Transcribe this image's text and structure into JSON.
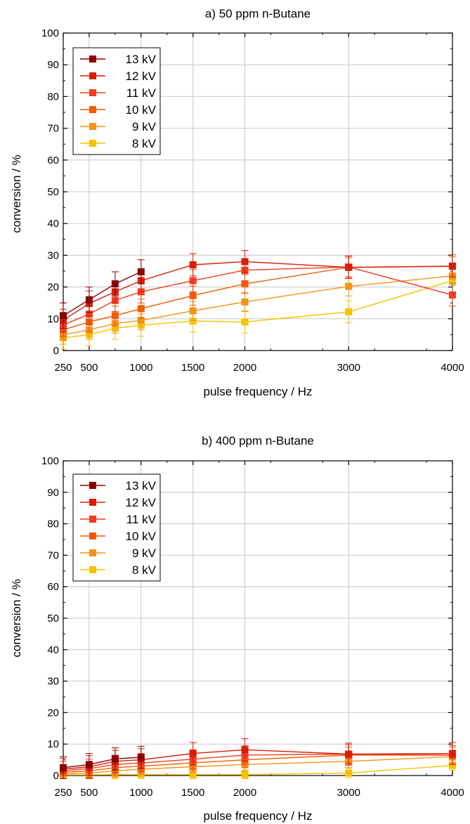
{
  "chart_data": [
    {
      "type": "line",
      "title": "a) 50 ppm n-Butane",
      "xlabel": "pulse frequency / Hz",
      "ylabel": "conversion / %",
      "xlim": [
        250,
        4000
      ],
      "ylim": [
        0,
        100
      ],
      "xticks": [
        250,
        500,
        1000,
        1500,
        2000,
        3000,
        4000
      ],
      "yticks": [
        0,
        10,
        20,
        30,
        40,
        50,
        60,
        70,
        80,
        90,
        100
      ],
      "grid": true,
      "legend_position": "top-left",
      "series": [
        {
          "name": "13 kV",
          "color": "#8b0000",
          "x": [
            250,
            500,
            750,
            1000
          ],
          "y": [
            11.0,
            16.0,
            21.0,
            24.8
          ],
          "err": [
            4.0,
            4.0,
            3.8,
            3.8
          ]
        },
        {
          "name": "12 kV",
          "color": "#d81e05",
          "x": [
            250,
            500,
            750,
            1000,
            1500,
            2000,
            3000,
            4000
          ],
          "y": [
            9.5,
            14.8,
            18.5,
            22.0,
            27.0,
            28.0,
            26.2,
            26.6
          ],
          "err": [
            3.5,
            4.0,
            3.5,
            3.5,
            3.5,
            3.5,
            3.5,
            3.5
          ]
        },
        {
          "name": "11 kV",
          "color": "#f23c20",
          "x": [
            250,
            500,
            750,
            1000,
            1500,
            2000,
            3000,
            4000
          ],
          "y": [
            8.0,
            11.5,
            15.8,
            18.5,
            22.0,
            25.3,
            26.3,
            17.5
          ],
          "err": [
            3.5,
            3.5,
            3.5,
            3.5,
            3.5,
            3.5,
            3.5,
            3.5
          ]
        },
        {
          "name": "10 kV",
          "color": "#f25c05",
          "x": [
            250,
            500,
            750,
            1000,
            1500,
            2000,
            3000,
            4000
          ],
          "y": [
            6.5,
            9.0,
            11.0,
            13.2,
            17.3,
            21.0,
            26.2,
            26.5
          ],
          "err": [
            3.0,
            3.0,
            3.0,
            3.0,
            3.0,
            3.0,
            3.0,
            3.0
          ]
        },
        {
          "name": "9 kV",
          "color": "#f5921b",
          "x": [
            250,
            500,
            750,
            1000,
            1500,
            2000,
            3000,
            4000
          ],
          "y": [
            5.0,
            6.5,
            8.5,
            9.5,
            12.5,
            15.3,
            20.2,
            23.5
          ],
          "err": [
            3.0,
            3.0,
            3.0,
            3.0,
            3.0,
            3.0,
            3.0,
            3.0
          ]
        },
        {
          "name": "8 kV",
          "color": "#f5c200",
          "x": [
            250,
            500,
            750,
            1000,
            1500,
            2000,
            3000,
            4000
          ],
          "y": [
            4.0,
            5.0,
            7.0,
            8.0,
            9.3,
            9.0,
            12.2,
            22.0
          ],
          "err": [
            3.5,
            3.5,
            3.5,
            3.5,
            3.5,
            3.5,
            3.5,
            3.5
          ]
        }
      ]
    },
    {
      "type": "line",
      "title": "b) 400 ppm n-Butane",
      "xlabel": "pulse frequency / Hz",
      "ylabel": "conversion / %",
      "xlim": [
        250,
        4000
      ],
      "ylim": [
        0,
        100
      ],
      "xticks": [
        250,
        500,
        1000,
        1500,
        2000,
        3000,
        4000
      ],
      "yticks": [
        0,
        10,
        20,
        30,
        40,
        50,
        60,
        70,
        80,
        90,
        100
      ],
      "grid": true,
      "legend_position": "top-left",
      "series": [
        {
          "name": "13 kV",
          "color": "#8b0000",
          "x": [
            250,
            500,
            750,
            1000
          ],
          "y": [
            2.5,
            3.5,
            5.3,
            5.8
          ],
          "err": [
            3.5,
            3.5,
            3.5,
            3.5
          ]
        },
        {
          "name": "12 kV",
          "color": "#d81e05",
          "x": [
            250,
            500,
            750,
            1000,
            1500,
            2000,
            3000,
            4000
          ],
          "y": [
            2.0,
            2.8,
            4.5,
            5.0,
            7.0,
            8.2,
            6.8,
            7.0
          ],
          "err": [
            3.5,
            3.5,
            3.5,
            3.5,
            3.5,
            3.5,
            3.5,
            3.5
          ]
        },
        {
          "name": "11 kV",
          "color": "#f23c20",
          "x": [
            250,
            500,
            750,
            1000,
            1500,
            2000,
            3000,
            4000
          ],
          "y": [
            1.5,
            2.2,
            3.5,
            4.0,
            5.2,
            6.5,
            6.8,
            6.5
          ],
          "err": [
            3.0,
            3.0,
            3.0,
            3.0,
            3.0,
            3.0,
            3.0,
            3.0
          ]
        },
        {
          "name": "10 kV",
          "color": "#f25c05",
          "x": [
            250,
            500,
            750,
            1000,
            1500,
            2000,
            3000,
            4000
          ],
          "y": [
            1.0,
            1.5,
            2.5,
            3.0,
            4.0,
            5.0,
            6.5,
            6.5
          ],
          "err": [
            2.5,
            2.5,
            2.5,
            2.5,
            2.5,
            2.5,
            2.5,
            2.5
          ]
        },
        {
          "name": "9 kV",
          "color": "#f5921b",
          "x": [
            250,
            500,
            750,
            1000,
            1500,
            2000,
            3000,
            4000
          ],
          "y": [
            0.5,
            0.8,
            1.5,
            2.0,
            2.8,
            3.5,
            4.5,
            6.0
          ],
          "err": [
            2.0,
            2.0,
            2.0,
            2.0,
            2.0,
            2.0,
            2.0,
            2.0
          ]
        },
        {
          "name": "8 kV",
          "color": "#f5c200",
          "x": [
            250,
            500,
            750,
            1000,
            1500,
            2000,
            3000,
            4000
          ],
          "y": [
            0.2,
            0.2,
            0.3,
            0.3,
            0.3,
            0.3,
            0.8,
            3.2
          ],
          "err": [
            1.5,
            1.5,
            1.5,
            1.5,
            1.5,
            1.5,
            1.5,
            1.5
          ]
        }
      ]
    }
  ]
}
